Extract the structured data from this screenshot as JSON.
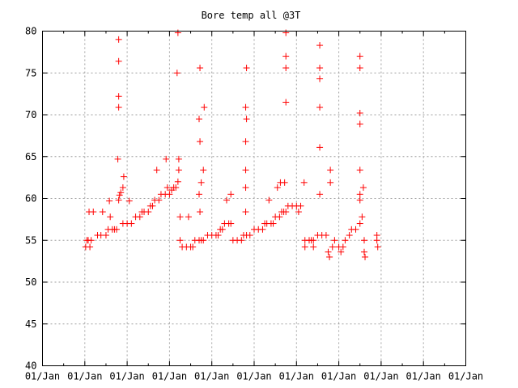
{
  "chart_data": {
    "type": "scatter",
    "title": "Bore temp all @3T",
    "xlabel": "",
    "ylabel": "",
    "marker": "+",
    "color": "#ff0000",
    "grid": true,
    "x_tick_labels": [
      "01/Jan",
      "01/Jan",
      "01/Jan",
      "01/Jan",
      "01/Jan",
      "01/Jan",
      "01/Jan",
      "01/Jan",
      "01/Jan",
      "01/Jan",
      "01/Jan"
    ],
    "xlim": [
      0,
      10
    ],
    "ylim": [
      40,
      80
    ],
    "y_ticks": [
      40,
      45,
      50,
      55,
      60,
      65,
      70,
      75,
      80
    ],
    "x_minor_per_major": 2,
    "points": [
      [
        1.02,
        54.2
      ],
      [
        1.05,
        55.0
      ],
      [
        1.08,
        55.0
      ],
      [
        1.12,
        54.2
      ],
      [
        1.15,
        55.0
      ],
      [
        1.1,
        58.4
      ],
      [
        1.2,
        58.4
      ],
      [
        1.3,
        55.6
      ],
      [
        1.38,
        55.6
      ],
      [
        1.42,
        58.4
      ],
      [
        1.5,
        55.6
      ],
      [
        1.55,
        56.3
      ],
      [
        1.58,
        59.7
      ],
      [
        1.6,
        57.8
      ],
      [
        1.65,
        56.3
      ],
      [
        1.7,
        56.3
      ],
      [
        1.75,
        56.3
      ],
      [
        1.8,
        59.8
      ],
      [
        1.82,
        60.4
      ],
      [
        1.85,
        60.7
      ],
      [
        1.9,
        61.3
      ],
      [
        1.92,
        62.6
      ],
      [
        1.78,
        64.7
      ],
      [
        1.8,
        70.9
      ],
      [
        1.8,
        72.2
      ],
      [
        1.8,
        76.4
      ],
      [
        1.8,
        79.0
      ],
      [
        1.9,
        57.0
      ],
      [
        2.0,
        57.0
      ],
      [
        2.1,
        57.0
      ],
      [
        2.05,
        59.7
      ],
      [
        2.2,
        57.8
      ],
      [
        2.3,
        57.8
      ],
      [
        2.35,
        58.4
      ],
      [
        2.4,
        58.4
      ],
      [
        2.5,
        58.4
      ],
      [
        2.55,
        59.1
      ],
      [
        2.6,
        59.1
      ],
      [
        2.65,
        59.8
      ],
      [
        2.75,
        59.8
      ],
      [
        2.7,
        63.4
      ],
      [
        2.8,
        60.5
      ],
      [
        2.9,
        60.5
      ],
      [
        3.0,
        60.5
      ],
      [
        2.95,
        61.3
      ],
      [
        3.05,
        61.0
      ],
      [
        2.92,
        64.7
      ],
      [
        3.1,
        61.3
      ],
      [
        3.15,
        61.3
      ],
      [
        3.2,
        62.0
      ],
      [
        3.22,
        63.4
      ],
      [
        3.22,
        64.7
      ],
      [
        3.18,
        75.0
      ],
      [
        3.2,
        79.8
      ],
      [
        3.25,
        55.0
      ],
      [
        3.3,
        54.2
      ],
      [
        3.4,
        54.2
      ],
      [
        3.5,
        54.2
      ],
      [
        3.55,
        54.2
      ],
      [
        3.25,
        57.8
      ],
      [
        3.45,
        57.8
      ],
      [
        3.6,
        55.0
      ],
      [
        3.7,
        55.0
      ],
      [
        3.75,
        55.0
      ],
      [
        3.8,
        55.0
      ],
      [
        3.72,
        58.4
      ],
      [
        3.7,
        60.5
      ],
      [
        3.75,
        61.9
      ],
      [
        3.72,
        66.8
      ],
      [
        3.7,
        69.5
      ],
      [
        3.72,
        75.6
      ],
      [
        3.8,
        63.4
      ],
      [
        3.82,
        70.9
      ],
      [
        3.9,
        55.6
      ],
      [
        4.0,
        55.6
      ],
      [
        4.1,
        55.6
      ],
      [
        4.15,
        55.6
      ],
      [
        4.2,
        56.3
      ],
      [
        4.25,
        56.3
      ],
      [
        4.3,
        57.0
      ],
      [
        4.4,
        57.0
      ],
      [
        4.45,
        57.0
      ],
      [
        4.35,
        59.8
      ],
      [
        4.45,
        60.5
      ],
      [
        4.5,
        55.0
      ],
      [
        4.6,
        55.0
      ],
      [
        4.7,
        55.0
      ],
      [
        4.75,
        55.6
      ],
      [
        4.82,
        55.6
      ],
      [
        4.8,
        58.4
      ],
      [
        4.8,
        61.3
      ],
      [
        4.8,
        63.4
      ],
      [
        4.8,
        66.8
      ],
      [
        4.82,
        69.5
      ],
      [
        4.8,
        70.9
      ],
      [
        4.82,
        75.6
      ],
      [
        4.9,
        55.6
      ],
      [
        5.0,
        56.3
      ],
      [
        5.1,
        56.3
      ],
      [
        5.2,
        56.3
      ],
      [
        5.25,
        57.0
      ],
      [
        5.3,
        57.0
      ],
      [
        5.4,
        57.0
      ],
      [
        5.45,
        57.0
      ],
      [
        5.35,
        59.8
      ],
      [
        5.5,
        57.8
      ],
      [
        5.6,
        57.8
      ],
      [
        5.65,
        58.4
      ],
      [
        5.7,
        58.4
      ],
      [
        5.75,
        58.4
      ],
      [
        5.55,
        61.3
      ],
      [
        5.62,
        61.9
      ],
      [
        5.72,
        61.9
      ],
      [
        5.75,
        71.5
      ],
      [
        5.75,
        75.6
      ],
      [
        5.75,
        77.0
      ],
      [
        5.75,
        79.8
      ],
      [
        5.8,
        59.1
      ],
      [
        5.9,
        59.1
      ],
      [
        6.0,
        59.1
      ],
      [
        6.1,
        59.1
      ],
      [
        6.05,
        58.4
      ],
      [
        6.2,
        55.0
      ],
      [
        6.3,
        55.0
      ],
      [
        6.35,
        55.0
      ],
      [
        6.4,
        55.0
      ],
      [
        6.18,
        61.9
      ],
      [
        6.2,
        54.2
      ],
      [
        6.4,
        54.2
      ],
      [
        6.5,
        55.6
      ],
      [
        6.6,
        55.6
      ],
      [
        6.7,
        55.6
      ],
      [
        6.55,
        60.5
      ],
      [
        6.55,
        66.1
      ],
      [
        6.55,
        70.9
      ],
      [
        6.55,
        74.3
      ],
      [
        6.55,
        75.6
      ],
      [
        6.55,
        78.3
      ],
      [
        6.75,
        53.6
      ],
      [
        6.78,
        53.0
      ],
      [
        6.8,
        61.9
      ],
      [
        6.8,
        63.4
      ],
      [
        6.85,
        54.2
      ],
      [
        6.9,
        55.0
      ],
      [
        7.0,
        54.2
      ],
      [
        7.05,
        53.6
      ],
      [
        7.1,
        54.2
      ],
      [
        7.15,
        55.0
      ],
      [
        7.25,
        55.6
      ],
      [
        7.3,
        56.3
      ],
      [
        7.4,
        56.3
      ],
      [
        7.5,
        57.0
      ],
      [
        7.5,
        59.8
      ],
      [
        7.5,
        60.5
      ],
      [
        7.5,
        63.4
      ],
      [
        7.5,
        68.9
      ],
      [
        7.5,
        70.2
      ],
      [
        7.5,
        75.6
      ],
      [
        7.5,
        77.0
      ],
      [
        7.58,
        61.3
      ],
      [
        7.6,
        55.0
      ],
      [
        7.6,
        53.6
      ],
      [
        7.62,
        53.0
      ],
      [
        7.55,
        57.8
      ],
      [
        7.9,
        55.0
      ],
      [
        7.9,
        55.6
      ],
      [
        7.92,
        54.2
      ]
    ]
  }
}
